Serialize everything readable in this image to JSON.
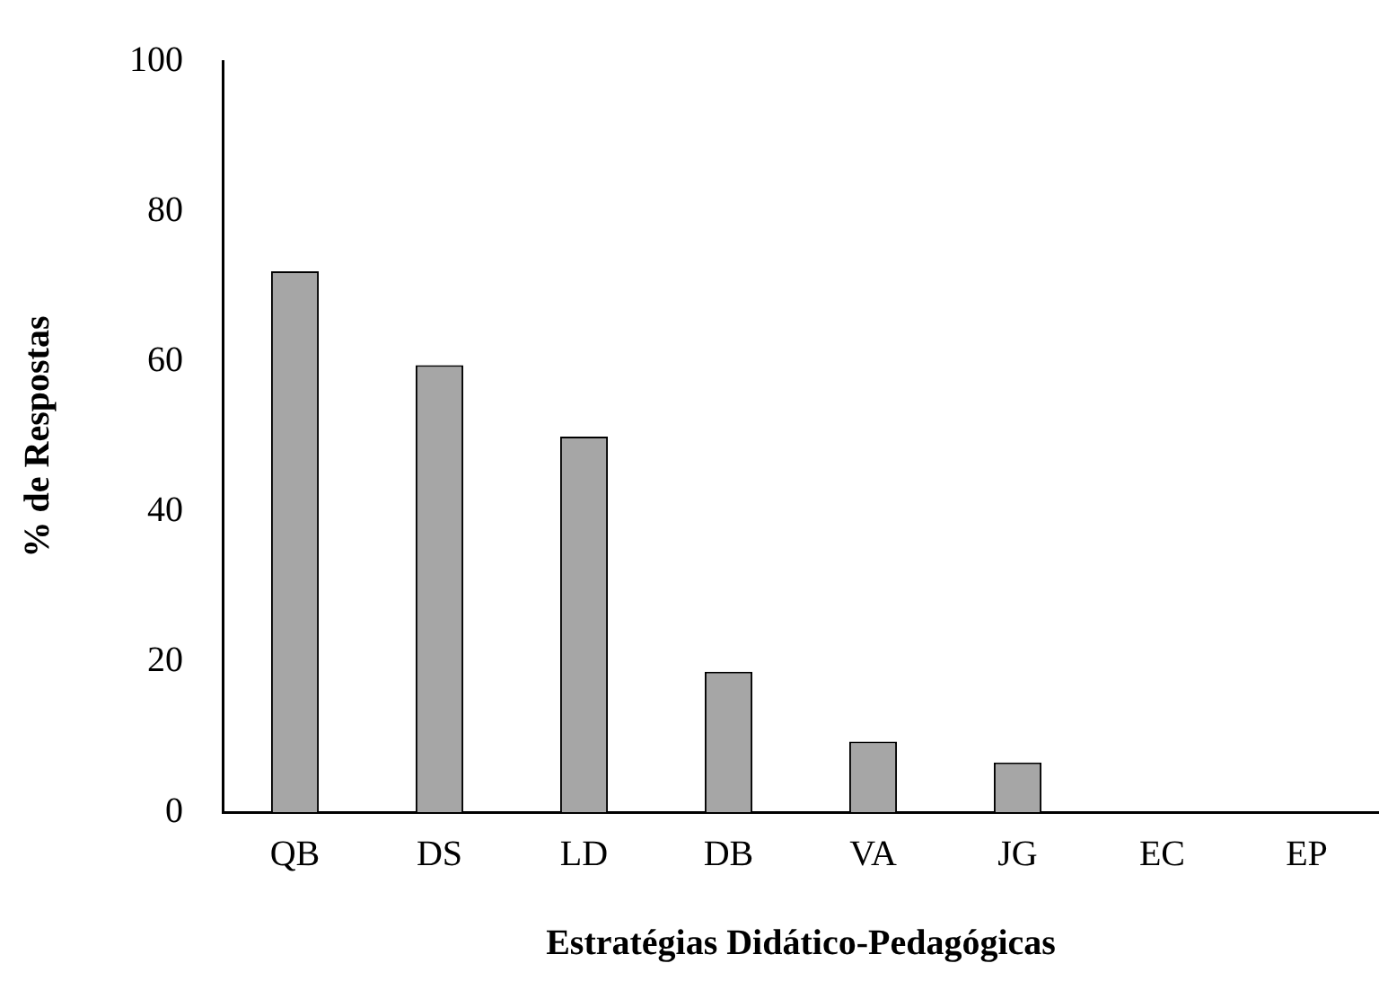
{
  "chart_data": {
    "type": "bar",
    "xlabel": "Estratégias Didático-Pedagógicas",
    "ylabel": "% de Respostas",
    "categories": [
      "QB",
      "DS",
      "LD",
      "DB",
      "VA",
      "JG",
      "EC",
      "EP"
    ],
    "values": [
      72,
      59.5,
      50,
      18.7,
      9.4,
      6.6,
      0,
      0
    ],
    "color": "#a6a6a6",
    "ylim": [
      0,
      100
    ],
    "yticks": [
      0,
      20,
      40,
      60,
      80,
      100
    ],
    "grid": false,
    "legend": false
  }
}
